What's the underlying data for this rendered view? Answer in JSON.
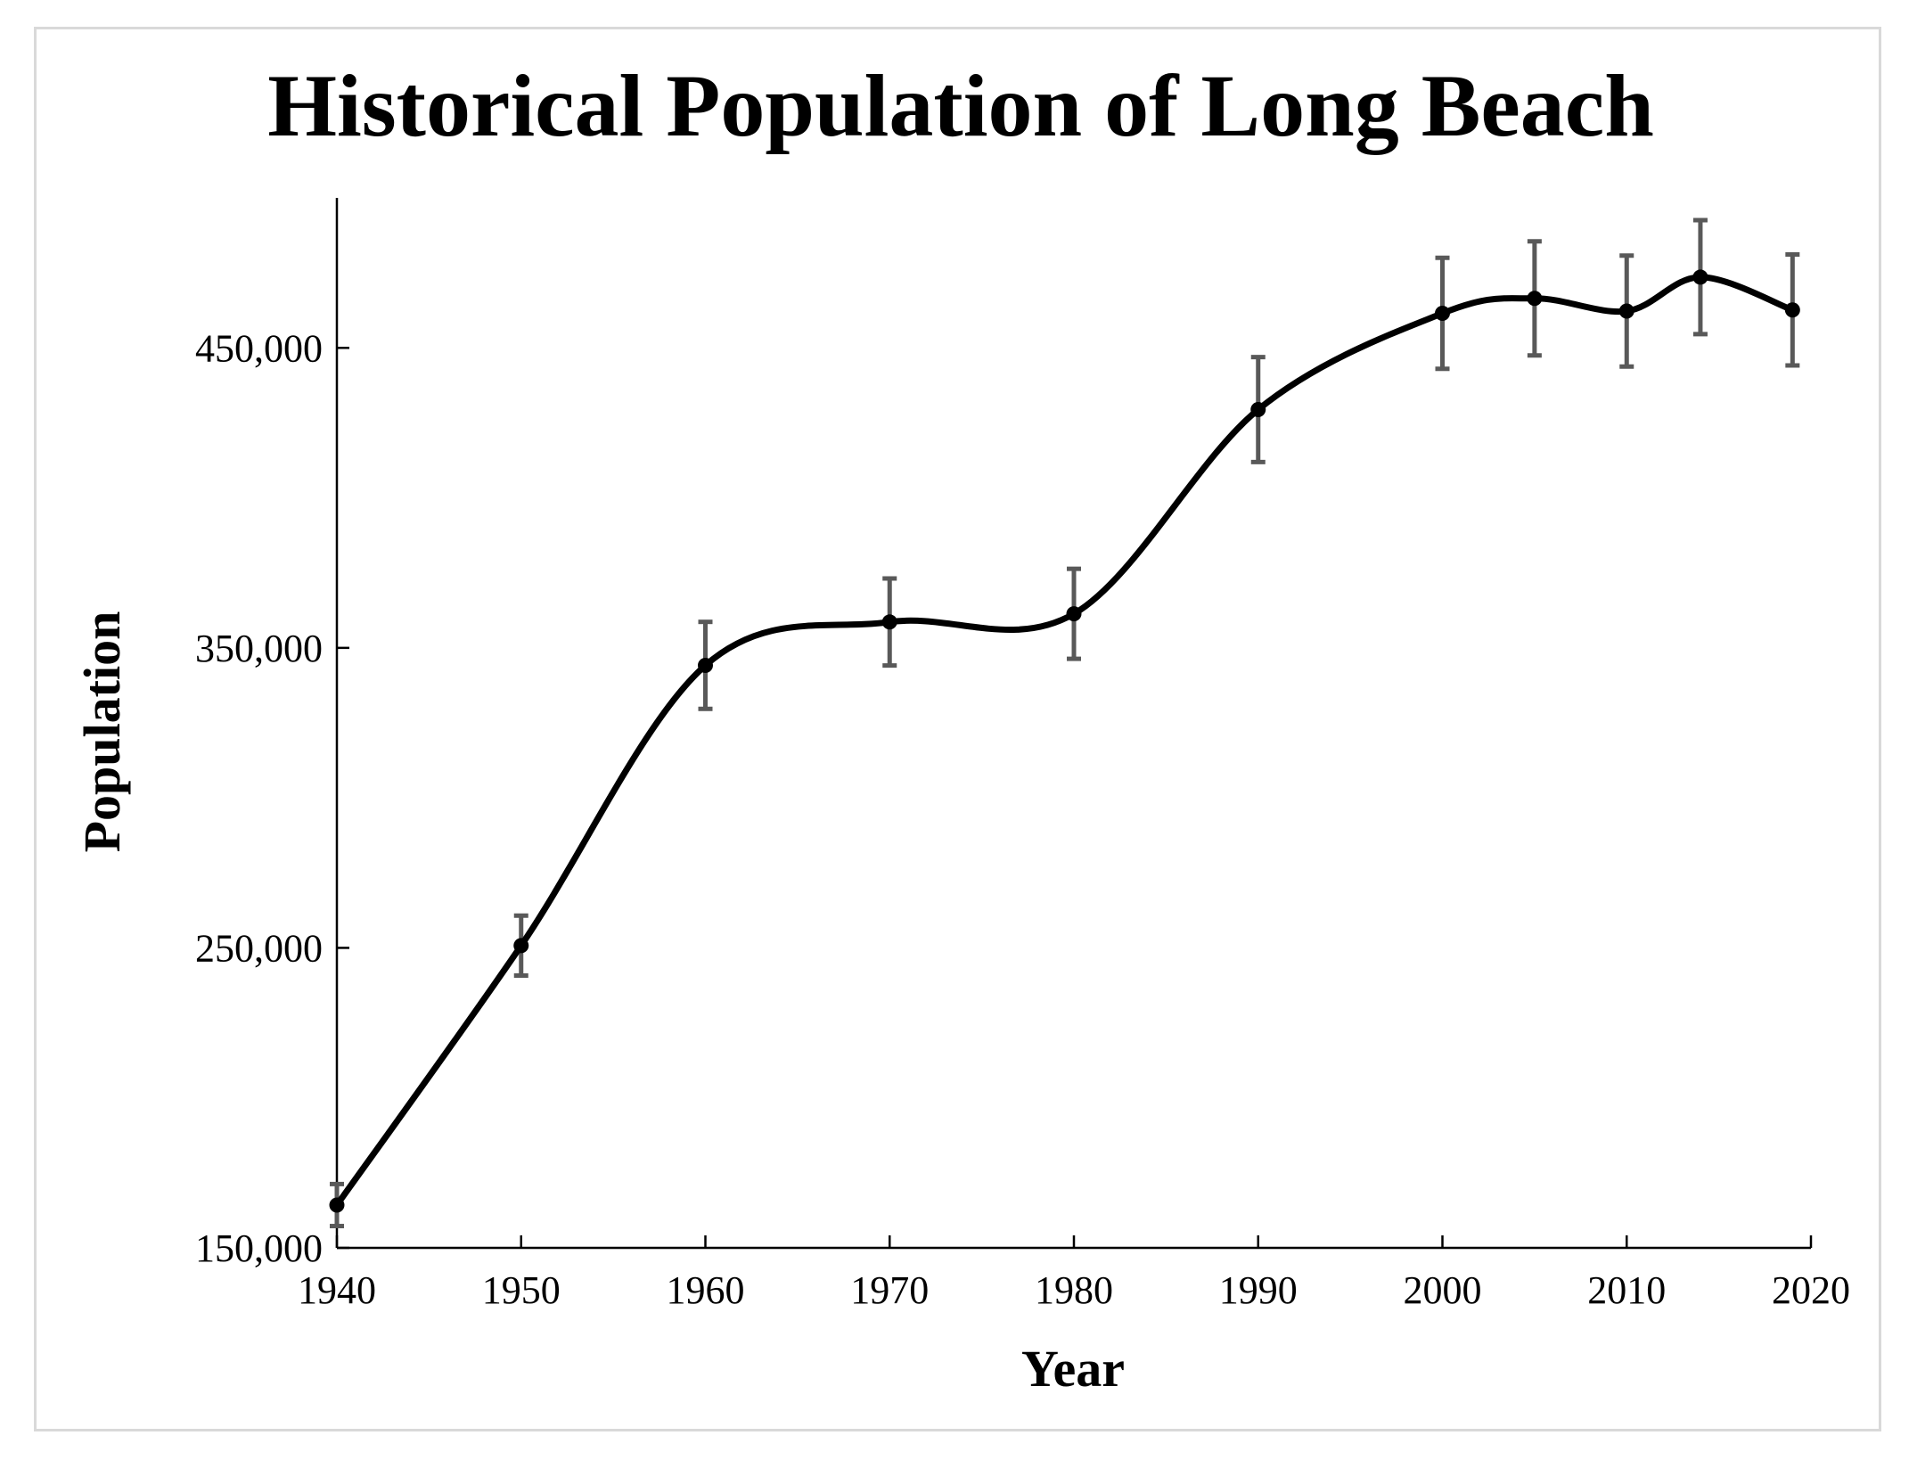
{
  "chart_data": {
    "type": "line",
    "title": "Historical Population of Long Beach",
    "xlabel": "Year",
    "ylabel": "Population",
    "xlim": [
      1940,
      2020
    ],
    "ylim": [
      150000,
      500000
    ],
    "x_ticks": [
      1940,
      1950,
      1960,
      1970,
      1980,
      1990,
      2000,
      2010,
      2020
    ],
    "x_tick_labels": [
      "1940",
      "1950",
      "1960",
      "1970",
      "1980",
      "1990",
      "2000",
      "2010",
      "2020"
    ],
    "y_ticks": [
      150000,
      250000,
      350000,
      450000
    ],
    "y_tick_labels": [
      "150,000",
      "250,000",
      "350,000",
      "450,000"
    ],
    "grid": false,
    "series": [
      {
        "name": "Population",
        "color": "#000000",
        "error_bar_color": "#595959",
        "points": [
          {
            "x": 1940,
            "y": 164271,
            "err": 7000
          },
          {
            "x": 1950,
            "y": 250767,
            "err": 10000
          },
          {
            "x": 1960,
            "y": 344168,
            "err": 14500
          },
          {
            "x": 1970,
            "y": 358633,
            "err": 14500
          },
          {
            "x": 1980,
            "y": 361355,
            "err": 15000
          },
          {
            "x": 1990,
            "y": 429433,
            "err": 17500
          },
          {
            "x": 2000,
            "y": 461522,
            "err": 18500
          },
          {
            "x": 2005,
            "y": 466500,
            "err": 19000
          },
          {
            "x": 2010,
            "y": 462257,
            "err": 18500
          },
          {
            "x": 2014,
            "y": 473577,
            "err": 19000
          },
          {
            "x": 2019,
            "y": 462628,
            "err": 18500
          }
        ]
      }
    ]
  }
}
